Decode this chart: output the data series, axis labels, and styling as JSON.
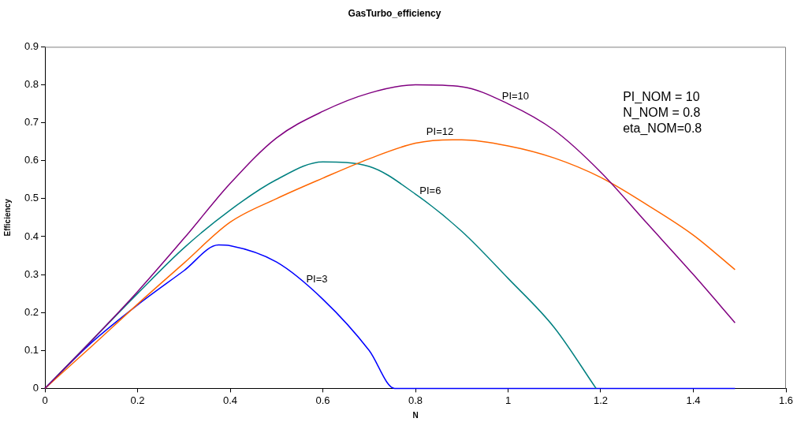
{
  "chart_data": {
    "type": "line",
    "title": "GasTurbo_efficiency",
    "xlabel": "N",
    "ylabel": "Efficiency",
    "xlim": [
      0,
      1.6
    ],
    "xticks": [
      0,
      0.2,
      0.4,
      0.6,
      0.8,
      1,
      1.2,
      1.4,
      1.6
    ],
    "ylim": [
      0,
      0.9
    ],
    "yticks": [
      0,
      0.1,
      0.2,
      0.3,
      0.4,
      0.5,
      0.6,
      0.7,
      0.8,
      0.9
    ],
    "grid": false,
    "legend": false,
    "marker": "none",
    "line_style": "solid",
    "series": [
      {
        "name": "PI=10",
        "color": "#800080",
        "x": [
          0,
          0.1,
          0.2,
          0.3,
          0.4,
          0.5,
          0.6,
          0.7,
          0.8,
          0.9,
          1.0,
          1.1,
          1.2,
          1.3,
          1.4,
          1.49
        ],
        "values": [
          0,
          0.125,
          0.255,
          0.395,
          0.54,
          0.66,
          0.73,
          0.778,
          0.8,
          0.795,
          0.75,
          0.68,
          0.57,
          0.435,
          0.3,
          0.173
        ]
      },
      {
        "name": "PI=12",
        "color": "#ff6600",
        "x": [
          0,
          0.1,
          0.2,
          0.3,
          0.4,
          0.5,
          0.6,
          0.7,
          0.8,
          0.88,
          0.9,
          1.0,
          1.1,
          1.2,
          1.3,
          1.4,
          1.49
        ],
        "values": [
          0,
          0.11,
          0.222,
          0.33,
          0.438,
          0.5,
          0.554,
          0.605,
          0.646,
          0.655,
          0.655,
          0.639,
          0.607,
          0.556,
          0.484,
          0.404,
          0.313
        ]
      },
      {
        "name": "PI=6",
        "color": "#008080",
        "x": [
          0,
          0.1,
          0.2,
          0.3,
          0.4,
          0.5,
          0.6,
          0.7,
          0.8,
          0.9,
          1.0,
          1.1,
          1.19
        ],
        "values": [
          0,
          0.125,
          0.25,
          0.37,
          0.47,
          0.55,
          0.597,
          0.585,
          0.512,
          0.414,
          0.29,
          0.16,
          0
        ]
      },
      {
        "name": "PI=3",
        "color": "#0000ff",
        "x": [
          0,
          0.1,
          0.2,
          0.3,
          0.375,
          0.4,
          0.5,
          0.6,
          0.7,
          0.755,
          1.49
        ],
        "values": [
          0,
          0.12,
          0.22,
          0.31,
          0.378,
          0.376,
          0.333,
          0.235,
          0.1,
          0,
          0
        ]
      }
    ],
    "annotations": [
      "PI_NOM = 10",
      "N_NOM = 0.8",
      "eta_NOM=0.8"
    ]
  }
}
